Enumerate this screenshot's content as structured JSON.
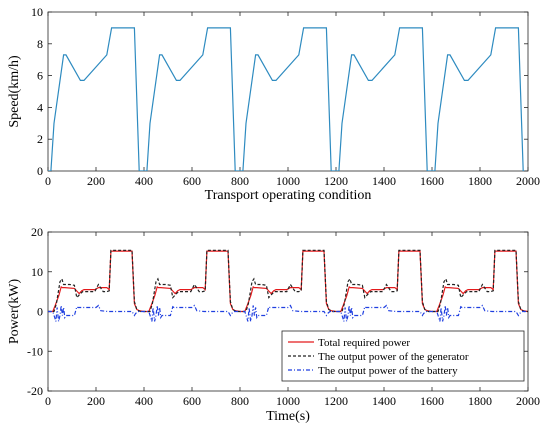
{
  "chart_data": [
    {
      "type": "line",
      "title": "",
      "xlabel": "Transport operating condition",
      "ylabel": "Speed(km/h)",
      "xlim": [
        0,
        2000
      ],
      "ylim": [
        0,
        10
      ],
      "xticks": [
        0,
        200,
        400,
        600,
        800,
        1000,
        1200,
        1400,
        1600,
        1800,
        2000
      ],
      "yticks": [
        0,
        2,
        4,
        6,
        8,
        10
      ],
      "grid": false,
      "series": [
        {
          "color": "#2e8bc0",
          "period": 400,
          "cycle_x": [
            0,
            5,
            12,
            25,
            65,
            75,
            135,
            150,
            245,
            265,
            345,
            360,
            380,
            385
          ],
          "cycle_y": [
            0,
            0,
            0,
            3.0,
            7.3,
            7.3,
            5.7,
            5.7,
            7.3,
            9.0,
            9.0,
            9.0,
            0,
            0
          ]
        }
      ]
    },
    {
      "type": "line",
      "title": "",
      "xlabel": "Time(s)",
      "ylabel": "Power(kW)",
      "xlim": [
        0,
        2000
      ],
      "ylim": [
        -20,
        20
      ],
      "xticks": [
        0,
        200,
        400,
        600,
        800,
        1000,
        1200,
        1400,
        1600,
        1800,
        2000
      ],
      "yticks": [
        -20,
        -10,
        0,
        10,
        20
      ],
      "grid": false,
      "legend": "bottom-right",
      "series": [
        {
          "name": "Total required power",
          "color": "#e41a1c",
          "style": "solid",
          "period": 400,
          "cycle_x": [
            0,
            20,
            30,
            45,
            55,
            60,
            70,
            110,
            130,
            140,
            150,
            195,
            210,
            235,
            245,
            255,
            262,
            275,
            285,
            350,
            360,
            370,
            380,
            400
          ],
          "cycle_y": [
            0,
            0,
            1.5,
            4.0,
            6.2,
            6.0,
            6.0,
            5.8,
            4.5,
            5.2,
            5.5,
            5.5,
            6.0,
            6.0,
            6.0,
            5.5,
            15.2,
            15.2,
            15.2,
            15.2,
            2.0,
            0.5,
            0.2,
            0
          ]
        },
        {
          "name": "The output power of the generator",
          "color": "#222222",
          "style": "dashed",
          "period": 400,
          "cycle_x": [
            0,
            25,
            35,
            50,
            58,
            65,
            72,
            90,
            110,
            120,
            135,
            145,
            155,
            195,
            210,
            230,
            245,
            255,
            262,
            285,
            350,
            360,
            370,
            385,
            400
          ],
          "cycle_y": [
            0,
            0,
            2.0,
            7.5,
            8.2,
            6.8,
            6.8,
            6.8,
            6.6,
            3.5,
            4.5,
            5.0,
            5.0,
            5.0,
            6.8,
            5.0,
            5.0,
            5.2,
            15.4,
            15.4,
            15.4,
            2.5,
            0.5,
            0,
            0
          ]
        },
        {
          "name": "The output power of the battery",
          "color": "#1f3fe0",
          "style": "dashdot",
          "period": 400,
          "cycle_x": [
            0,
            20,
            28,
            33,
            38,
            44,
            50,
            55,
            60,
            65,
            70,
            75,
            110,
            120,
            125,
            140,
            150,
            200,
            210,
            220,
            250,
            262,
            350,
            360,
            365,
            375,
            400
          ],
          "cycle_y": [
            0,
            0,
            -1.5,
            -2.5,
            1.0,
            -2.5,
            -1.0,
            1.5,
            -1.0,
            1.0,
            -1.5,
            -1.0,
            -1.0,
            1.2,
            1.0,
            1.0,
            1.0,
            1.0,
            1.5,
            0.2,
            0,
            0,
            0,
            -1.0,
            -0.5,
            0,
            0
          ]
        }
      ]
    }
  ]
}
